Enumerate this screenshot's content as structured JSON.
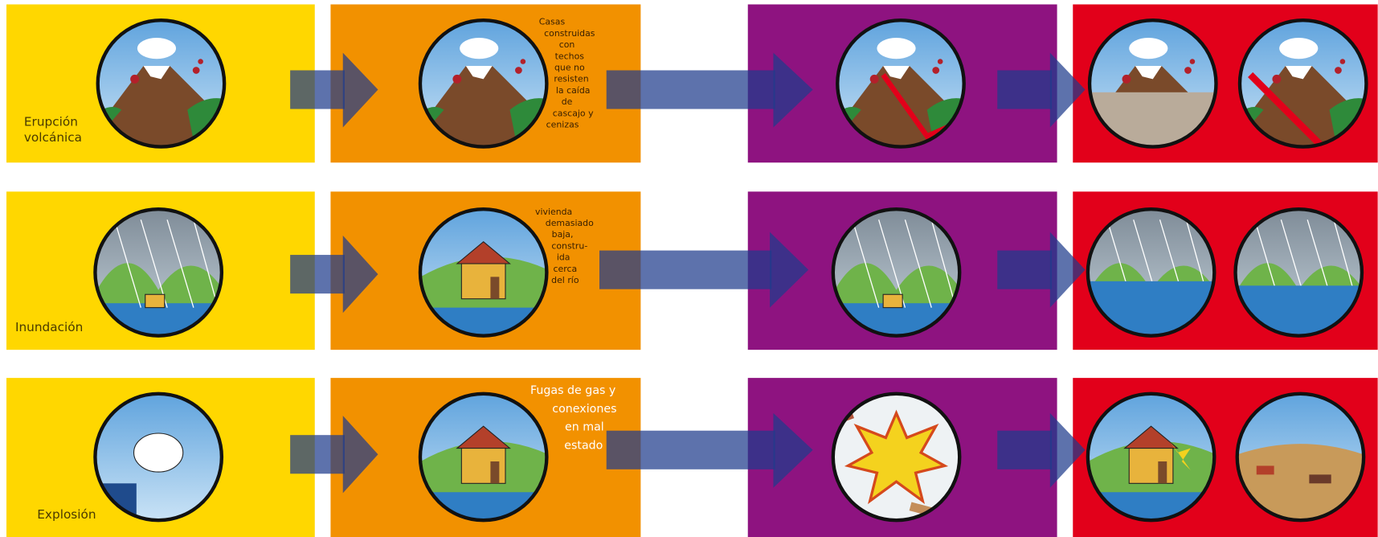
{
  "rows": [
    {
      "hazard": [
        "Erupción",
        "volcánica"
      ],
      "vulnerability": [
        "Casas",
        "construidas",
        "con",
        "techos",
        "que no",
        "resisten",
        "la caída",
        "de",
        "cascajo y",
        "cenizas"
      ]
    },
    {
      "hazard": [
        "Inundación"
      ],
      "vulnerability": [
        "vivienda",
        "demasiado",
        "baja,",
        "constru-",
        "ida",
        "cerca",
        "del río"
      ]
    },
    {
      "hazard": [
        "Explosión"
      ],
      "vulnerability": [
        "Fugas de gas y",
        "conexiones",
        "en mal",
        "estado"
      ]
    }
  ]
}
